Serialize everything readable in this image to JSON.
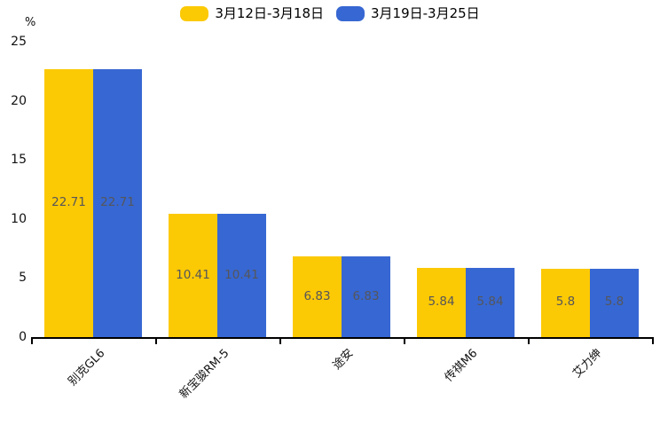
{
  "chart_data": {
    "type": "bar",
    "title": "",
    "unit_label": "%",
    "categories": [
      "别克GL6",
      "新宝骏RM-5",
      "途安",
      "传祺M6",
      "艾力绅"
    ],
    "series": [
      {
        "name": "3月12日-3月18日",
        "color": "#fcc905",
        "values": [
          22.71,
          10.41,
          6.83,
          5.84,
          5.8
        ]
      },
      {
        "name": "3月19日-3月25日",
        "color": "#3767d2",
        "values": [
          22.71,
          10.41,
          6.83,
          5.84,
          5.8
        ]
      }
    ],
    "value_labels": [
      "22.71",
      "10.41",
      "6.83",
      "5.84",
      "5.8"
    ],
    "ylim": [
      0,
      25
    ],
    "yticks": [
      0,
      5,
      10,
      15,
      20,
      25
    ],
    "grid": false,
    "legend_position": "top",
    "value_label_color": "#55565a",
    "axis_color": "#000000"
  }
}
